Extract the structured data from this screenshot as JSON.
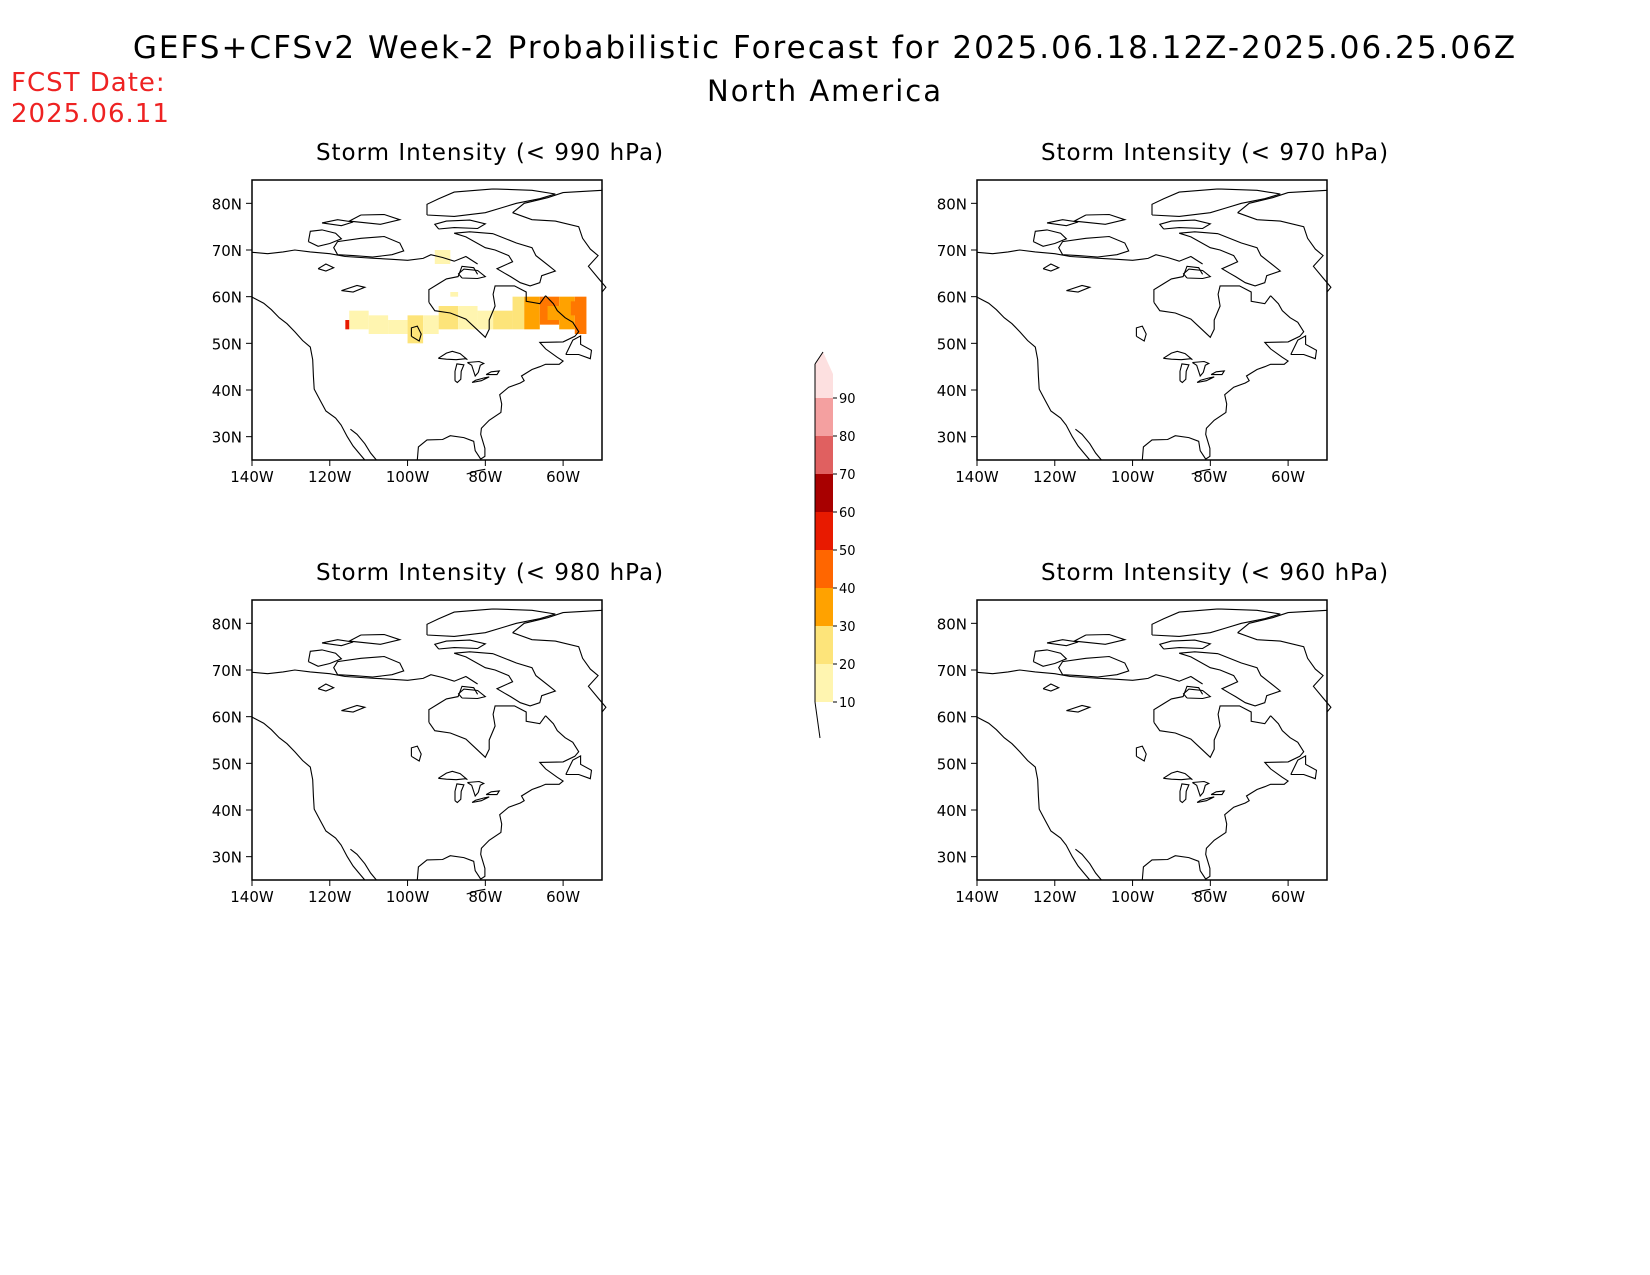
{
  "header": {
    "title": "GEFS+CFSv2 Week-2 Probabilistic Forecast for 2025.06.18.12Z-2025.06.25.06Z",
    "region": "North America",
    "fcst_label": "FCST Date:",
    "fcst_date": "2025.06.11"
  },
  "map": {
    "lat_labels": [
      "30N",
      "40N",
      "50N",
      "60N",
      "70N",
      "80N"
    ],
    "lon_labels": [
      "140W",
      "120W",
      "100W",
      "80W",
      "60W"
    ]
  },
  "panels": [
    {
      "title": "Storm Intensity (< 990 hPa)",
      "has_shading": true
    },
    {
      "title": "Storm Intensity (< 970 hPa)",
      "has_shading": false
    },
    {
      "title": "Storm Intensity (< 980 hPa)",
      "has_shading": false
    },
    {
      "title": "Storm Intensity (< 960 hPa)",
      "has_shading": false
    }
  ],
  "colorbar": {
    "levels": [
      "10",
      "20",
      "30",
      "40",
      "50",
      "60",
      "70",
      "80",
      "90"
    ],
    "colors": [
      "#fff5b0",
      "#fde47a",
      "#ffa200",
      "#ff6600",
      "#e81a00",
      "#a80000",
      "#e06060",
      "#f4a0a0",
      "#fde0e0"
    ]
  },
  "shading": {
    "low": "#fff5b0",
    "mid": "#fde47a",
    "orange": "#ffa200",
    "dark_orange": "#ff7700",
    "red": "#e81a00"
  }
}
